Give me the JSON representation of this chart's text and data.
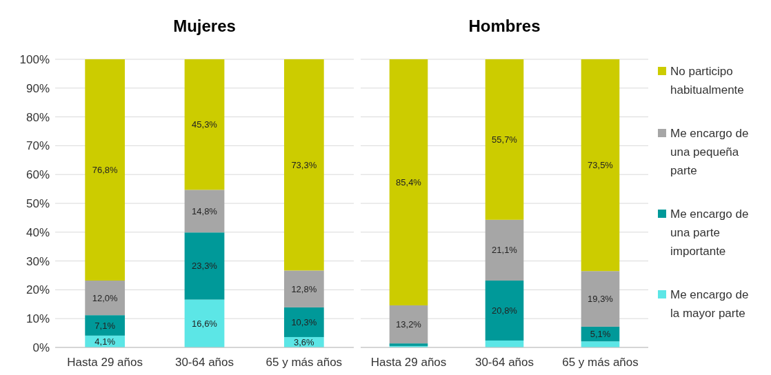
{
  "chart_data": [
    {
      "type": "bar",
      "title": "Mujeres",
      "stacked": true,
      "categories": [
        "Hasta 29 años",
        "30-64 años",
        "65 y más años"
      ],
      "ylim": [
        0,
        100
      ],
      "yticks": [
        {
          "value": 0,
          "label": "0%"
        },
        {
          "value": 10,
          "label": "10%"
        },
        {
          "value": 20,
          "label": "20%"
        },
        {
          "value": 30,
          "label": "30%"
        },
        {
          "value": 40,
          "label": "40%"
        },
        {
          "value": 50,
          "label": "50%"
        },
        {
          "value": 60,
          "label": "60%"
        },
        {
          "value": 70,
          "label": "70%"
        },
        {
          "value": 80,
          "label": "80%"
        },
        {
          "value": 90,
          "label": "90%"
        },
        {
          "value": 100,
          "label": "100%"
        }
      ],
      "grid": "y",
      "legend": false,
      "series": [
        {
          "color": "#5ce6e6",
          "values": [
            4.1,
            16.6,
            3.6
          ],
          "value_labels": [
            "4,1%",
            "16,6%",
            "3,6%"
          ]
        },
        {
          "color": "#009999",
          "values": [
            7.1,
            23.3,
            10.3
          ],
          "value_labels": [
            "7,1%",
            "23,3%",
            "10,3%"
          ]
        },
        {
          "color": "#a6a6a6",
          "values": [
            12.0,
            14.8,
            12.8
          ],
          "value_labels": [
            "12,0%",
            "14,8%",
            "12,8%"
          ]
        },
        {
          "color": "#cccc00",
          "values": [
            76.8,
            45.3,
            73.3
          ],
          "value_labels": [
            "76,8%",
            "45,3%",
            "73,3%"
          ]
        }
      ]
    },
    {
      "type": "bar",
      "title": "Hombres",
      "stacked": true,
      "categories": [
        "Hasta 29 años",
        "30-64 años",
        "65 y más años"
      ],
      "ylim": [
        0,
        100
      ],
      "yticks": [
        0,
        10,
        20,
        30,
        40,
        50,
        60,
        70,
        80,
        90,
        100
      ],
      "tick_labels": "x",
      "grid": "y",
      "legend": "right",
      "series": [
        {
          "name": "Me encargo de la mayor parte",
          "color": "#5ce6e6",
          "values": [
            0.5,
            2.4,
            2.1
          ],
          "value_labels": [
            null,
            null,
            null
          ]
        },
        {
          "name": "Me encargo de una parte importante",
          "color": "#009999",
          "values": [
            0.9,
            20.8,
            5.1
          ],
          "value_labels": [
            null,
            "20,8%",
            "5,1%"
          ]
        },
        {
          "name": "Me encargo de una pequeña parte",
          "color": "#a6a6a6",
          "values": [
            13.2,
            21.1,
            19.3
          ],
          "value_labels": [
            "13,2%",
            "21,1%",
            "19,3%"
          ]
        },
        {
          "name": "No participo habitualmente",
          "color": "#cccc00",
          "values": [
            85.4,
            55.7,
            73.5
          ],
          "value_labels": [
            "85,4%",
            "55,7%",
            "73,5%"
          ]
        }
      ]
    }
  ]
}
